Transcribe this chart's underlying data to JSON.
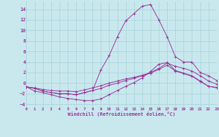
{
  "bg_color": "#c8e8ee",
  "grid_color": "#aad4dc",
  "line_color": "#993399",
  "xlim": [
    0,
    23
  ],
  "ylim": [
    -4.5,
    15.5
  ],
  "xticks": [
    0,
    1,
    2,
    3,
    4,
    5,
    6,
    7,
    8,
    9,
    10,
    11,
    12,
    13,
    14,
    15,
    16,
    17,
    18,
    19,
    20,
    21,
    22,
    23
  ],
  "yticks": [
    -4,
    -2,
    0,
    2,
    4,
    6,
    8,
    10,
    12,
    14
  ],
  "xlabel": "Windchill (Refroidissement éolien,°C)",
  "lines": [
    [
      [
        -0.7,
        -1.5,
        -1.8,
        -2.2,
        -2.6,
        -2.9,
        -3.1,
        -3.3,
        -3.3,
        -3.0,
        -2.2,
        -1.4,
        -0.6,
        0.1,
        1.0,
        2.2,
        3.6,
        3.9,
        2.4,
        1.9,
        1.4,
        0.4,
        -0.6,
        -0.9
      ]
    ],
    [
      [
        -0.7,
        -1.0,
        -1.5,
        -1.8,
        -2.0,
        -2.0,
        -2.2,
        -1.8,
        -1.4,
        2.5,
        5.2,
        8.8,
        11.8,
        13.2,
        14.6,
        14.9,
        12.0,
        8.8,
        5.0,
        4.0,
        4.0,
        2.0,
        1.4,
        0.5
      ]
    ],
    [
      [
        -0.7,
        -0.9,
        -1.2,
        -1.4,
        -1.5,
        -1.5,
        -1.6,
        -1.3,
        -0.9,
        -0.5,
        0.0,
        0.4,
        0.8,
        1.1,
        1.5,
        2.0,
        2.8,
        3.8,
        3.2,
        2.8,
        2.3,
        1.4,
        0.4,
        -0.2
      ]
    ],
    [
      [
        -0.7,
        -1.0,
        -1.5,
        -1.8,
        -2.0,
        -2.0,
        -2.2,
        -1.8,
        -1.4,
        -1.0,
        -0.4,
        0.0,
        0.5,
        0.9,
        1.4,
        1.9,
        2.6,
        3.4,
        2.3,
        1.8,
        1.3,
        0.3,
        -0.6,
        -0.8
      ]
    ]
  ]
}
